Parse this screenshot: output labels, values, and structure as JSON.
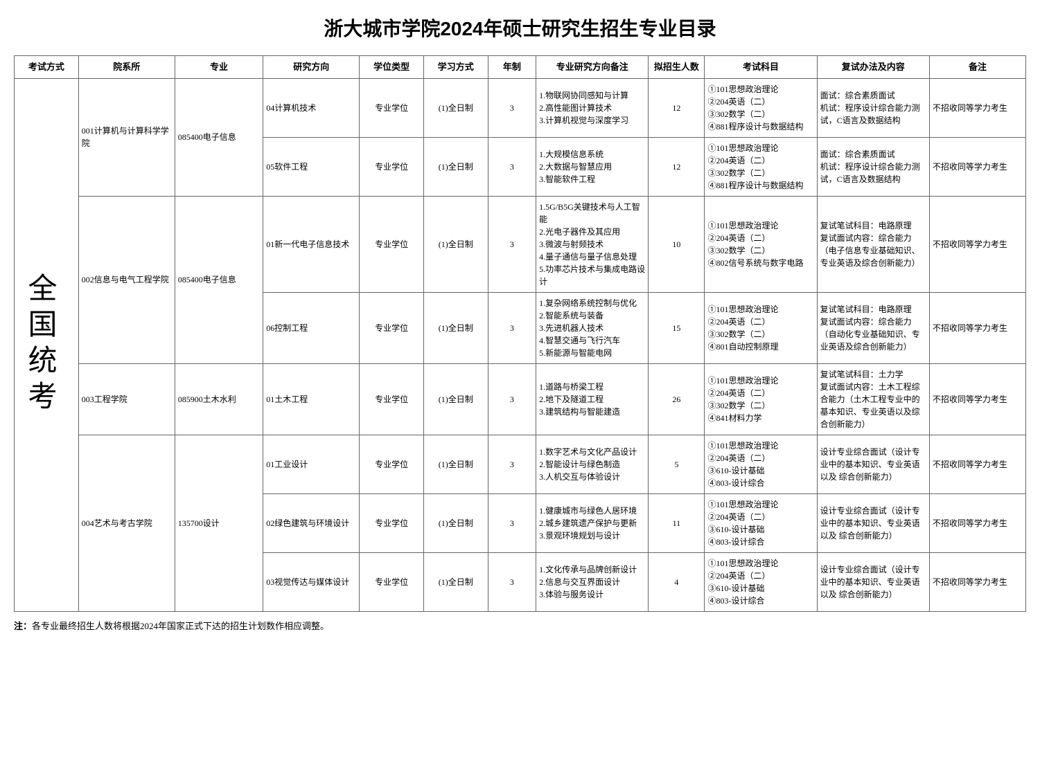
{
  "title": "浙大城市学院2024年硕士研究生招生专业目录",
  "headers": {
    "exam_method": "考试方式",
    "dept": "院系所",
    "major": "专业",
    "direction": "研究方向",
    "degree_type": "学位类型",
    "study_mode": "学习方式",
    "years": "年制",
    "notes": "专业研究方向备注",
    "quota": "拟招生人数",
    "subjects": "考试科目",
    "interview": "复试办法及内容",
    "remark": "备注"
  },
  "exam_method_text": "全国统考",
  "rows": [
    {
      "dept": "001计算机与计算科学学院",
      "major": "085400电子信息",
      "direction": "04计算机技术",
      "degree_type": "专业学位",
      "study_mode": "(1)全日制",
      "years": "3",
      "notes": "1.物联网协同感知与计算\n2.高性能图计算技术\n3.计算机视觉与深度学习",
      "quota": "12",
      "subjects": "①101思想政治理论\n②204英语（二）\n③302数学（二）\n④881程序设计与数据结构",
      "interview": "面试：综合素质面试\n机试：程序设计综合能力测试，C语言及数据结构",
      "remark": "不招收同等学力考生"
    },
    {
      "direction": "05软件工程",
      "degree_type": "专业学位",
      "study_mode": "(1)全日制",
      "years": "3",
      "notes": "1.大规模信息系统\n2.大数据与智慧应用\n3.智能软件工程",
      "quota": "12",
      "subjects": "①101思想政治理论\n②204英语（二）\n③302数学（二）\n④881程序设计与数据结构",
      "interview": "面试：综合素质面试\n机试：程序设计综合能力测试，C语言及数据结构",
      "remark": "不招收同等学力考生"
    },
    {
      "dept": "002信息与电气工程学院",
      "major": "085400电子信息",
      "direction": "01新一代电子信息技术",
      "degree_type": "专业学位",
      "study_mode": "(1)全日制",
      "years": "3",
      "notes": "1.5G/B5G关键技术与人工智能\n2.光电子器件及其应用\n3.微波与射频技术\n4.量子通信与量子信息处理\n5.功率芯片技术与集成电路设计",
      "quota": "10",
      "subjects": "①101思想政治理论\n②204英语（二）\n③302数学（二）\n④802信号系统与数字电路",
      "interview": "复试笔试科目：电路原理\n复试面试内容：综合能力（电子信息专业基础知识、专业英语及综合创新能力）",
      "remark": "不招收同等学力考生"
    },
    {
      "direction": "06控制工程",
      "degree_type": "专业学位",
      "study_mode": "(1)全日制",
      "years": "3",
      "notes": "1.复杂网络系统控制与优化\n2.智能系统与装备\n3.先进机器人技术\n4.智慧交通与飞行汽车\n5.新能源与智能电网",
      "quota": "15",
      "subjects": "①101思想政治理论\n②204英语（二）\n③302数学（二）\n④801自动控制原理",
      "interview": "复试笔试科目：电路原理\n复试面试内容：综合能力（自动化专业基础知识、专业英语及综合创新能力）",
      "remark": "不招收同等学力考生"
    },
    {
      "dept": "003工程学院",
      "major": "085900土木水利",
      "direction": "01土木工程",
      "degree_type": "专业学位",
      "study_mode": "(1)全日制",
      "years": "3",
      "notes": "1.道路与桥梁工程\n2.地下及隧道工程\n3.建筑结构与智能建造",
      "quota": "26",
      "subjects": "①101思想政治理论\n②204英语（二）\n③302数学（二）\n④841材料力学",
      "interview": "复试笔试科目：土力学\n复试面试内容：土木工程综合能力（土木工程专业中的基本知识、专业英语以及综合创新能力）",
      "remark": "不招收同等学力考生"
    },
    {
      "dept": "004艺术与考古学院",
      "major": "135700设计",
      "direction": "01工业设计",
      "degree_type": "专业学位",
      "study_mode": "(1)全日制",
      "years": "3",
      "notes": "1.数字艺术与文化产品设计\n2.智能设计与绿色制造\n3.人机交互与体验设计",
      "quota": "5",
      "subjects": "①101思想政治理论\n②204英语（二）\n③610-设计基础\n④803-设计综合",
      "interview": "设计专业综合面试（设计专业中的基本知识、专业英语以及 综合创新能力）",
      "remark": "不招收同等学力考生"
    },
    {
      "direction": "02绿色建筑与环境设计",
      "degree_type": "专业学位",
      "study_mode": "(1)全日制",
      "years": "3",
      "notes": "1.健康城市与绿色人居环境\n2.城乡建筑遗产保护与更新\n3.景观环境规划与设计",
      "quota": "11",
      "subjects": "①101思想政治理论\n②204英语（二）\n③610-设计基础\n④803-设计综合",
      "interview": "设计专业综合面试（设计专业中的基本知识、专业英语以及 综合创新能力）",
      "remark": "不招收同等学力考生"
    },
    {
      "direction": "03视觉传达与媒体设计",
      "degree_type": "专业学位",
      "study_mode": "(1)全日制",
      "years": "3",
      "notes": "1.文化传承与品牌创新设计\n2.信息与交互界面设计\n3.体验与服务设计",
      "quota": "4",
      "subjects": "①101思想政治理论\n②204英语（二）\n③610-设计基础\n④803-设计综合",
      "interview": "设计专业综合面试（设计专业中的基本知识、专业英语以及 综合创新能力）",
      "remark": "不招收同等学力考生"
    }
  ],
  "footnote_label": "注：",
  "footnote_text": "各专业最终招生人数将根据2024年国家正式下达的招生计划数作相应调整。"
}
